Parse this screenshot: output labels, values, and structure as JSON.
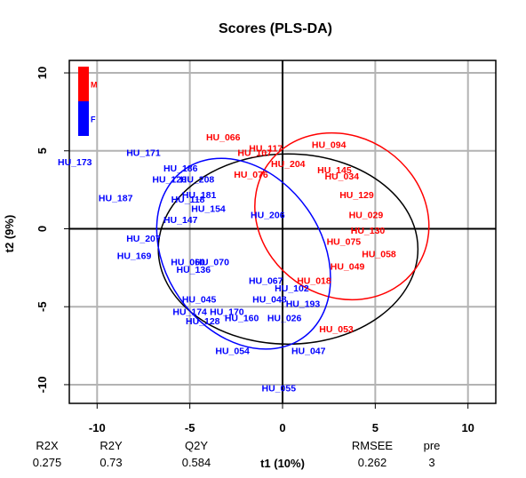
{
  "chart_data": {
    "type": "scatter",
    "title": "Scores (PLS-DA)",
    "xlabel": "t1 (10%)",
    "ylabel": "t2 (9%)",
    "xlim": [
      -11.5,
      11.5
    ],
    "ylim": [
      -11.2,
      10.8
    ],
    "xticks": [
      -10,
      -5,
      0,
      5,
      10
    ],
    "yticks": [
      -10,
      -5,
      0,
      5,
      10
    ],
    "grid": true,
    "legend": {
      "position": "top-left",
      "entries": [
        {
          "label": "M",
          "color": "#ff0000"
        },
        {
          "label": "F",
          "color": "#0000ff"
        }
      ]
    },
    "series": [
      {
        "name": "M",
        "color": "#ff0000",
        "points": [
          {
            "label": "HU_066",
            "x": -3.2,
            "y": 5.9
          },
          {
            "label": "HU_117",
            "x": -0.9,
            "y": 5.2
          },
          {
            "label": "HU_107",
            "x": -1.5,
            "y": 4.9
          },
          {
            "label": "HU_094",
            "x": 2.5,
            "y": 5.4
          },
          {
            "label": "HU_204",
            "x": 0.3,
            "y": 4.2
          },
          {
            "label": "HU_076",
            "x": -1.7,
            "y": 3.5
          },
          {
            "label": "HU_034",
            "x": 3.2,
            "y": 3.4
          },
          {
            "label": "HU_145",
            "x": 2.8,
            "y": 3.8
          },
          {
            "label": "HU_129",
            "x": 4.0,
            "y": 2.2
          },
          {
            "label": "HU_029",
            "x": 4.5,
            "y": 0.9
          },
          {
            "label": "HU_130",
            "x": 4.6,
            "y": -0.1
          },
          {
            "label": "HU_075",
            "x": 3.3,
            "y": -0.8
          },
          {
            "label": "HU_058",
            "x": 5.2,
            "y": -1.6
          },
          {
            "label": "HU_049",
            "x": 3.5,
            "y": -2.4
          },
          {
            "label": "HU_018",
            "x": 1.7,
            "y": -3.3
          },
          {
            "label": "HU_053",
            "x": 2.9,
            "y": -6.4
          }
        ]
      },
      {
        "name": "F",
        "color": "#0000ff",
        "points": [
          {
            "label": "HU_173",
            "x": -11.2,
            "y": 4.3
          },
          {
            "label": "HU_171",
            "x": -7.5,
            "y": 4.9
          },
          {
            "label": "HU_186",
            "x": -5.5,
            "y": 3.9
          },
          {
            "label": "HU_120",
            "x": -6.1,
            "y": 3.2
          },
          {
            "label": "HU_208",
            "x": -4.6,
            "y": 3.2
          },
          {
            "label": "HU_187",
            "x": -9.0,
            "y": 2.0
          },
          {
            "label": "HU_181",
            "x": -4.5,
            "y": 2.2
          },
          {
            "label": "HU_118",
            "x": -5.1,
            "y": 1.9
          },
          {
            "label": "HU_154",
            "x": -4.0,
            "y": 1.3
          },
          {
            "label": "HU_147",
            "x": -5.5,
            "y": 0.6
          },
          {
            "label": "HU_206",
            "x": -0.8,
            "y": 0.9
          },
          {
            "label": "HU_207",
            "x": -7.5,
            "y": -0.6
          },
          {
            "label": "HU_169",
            "x": -8.0,
            "y": -1.7
          },
          {
            "label": "HU_060",
            "x": -5.1,
            "y": -2.1
          },
          {
            "label": "HU_070",
            "x": -3.8,
            "y": -2.1
          },
          {
            "label": "HU_136",
            "x": -4.8,
            "y": -2.6
          },
          {
            "label": "HU_067",
            "x": -0.9,
            "y": -3.3
          },
          {
            "label": "HU_102",
            "x": 0.5,
            "y": -3.8
          },
          {
            "label": "HU_045",
            "x": -4.5,
            "y": -4.5
          },
          {
            "label": "HU_048",
            "x": -0.7,
            "y": -4.5
          },
          {
            "label": "HU_193",
            "x": 1.1,
            "y": -4.8
          },
          {
            "label": "HU_174",
            "x": -5.0,
            "y": -5.3
          },
          {
            "label": "HU_170",
            "x": -3.0,
            "y": -5.3
          },
          {
            "label": "HU_160",
            "x": -2.2,
            "y": -5.7
          },
          {
            "label": "HU_128",
            "x": -4.3,
            "y": -5.9
          },
          {
            "label": "HU_026",
            "x": 0.1,
            "y": -5.7
          },
          {
            "label": "HU_054",
            "x": -2.7,
            "y": -7.8
          },
          {
            "label": "HU_047",
            "x": 1.4,
            "y": -7.8
          },
          {
            "label": "HU_055",
            "x": -0.2,
            "y": -10.2
          }
        ]
      }
    ],
    "ellipses": [
      {
        "name": "all",
        "color": "#000000",
        "center": [
          0.3,
          -1.3
        ],
        "rx": 7.0,
        "ry": 6.1,
        "angle": 0
      },
      {
        "name": "M",
        "color": "#ff0000",
        "center": [
          3.2,
          0.8
        ],
        "rx": 4.3,
        "ry": 5.8,
        "angle": -55
      },
      {
        "name": "F",
        "color": "#0000ff",
        "center": [
          -2.1,
          -1.6
        ],
        "rx": 4.2,
        "ry": 6.6,
        "angle": -35
      }
    ]
  },
  "stats": {
    "headers": [
      "R2X",
      "R2Y",
      "Q2Y",
      "RMSEE",
      "pre"
    ],
    "values": [
      "0.275",
      "0.73",
      "0.584",
      "0.262",
      "3"
    ]
  }
}
